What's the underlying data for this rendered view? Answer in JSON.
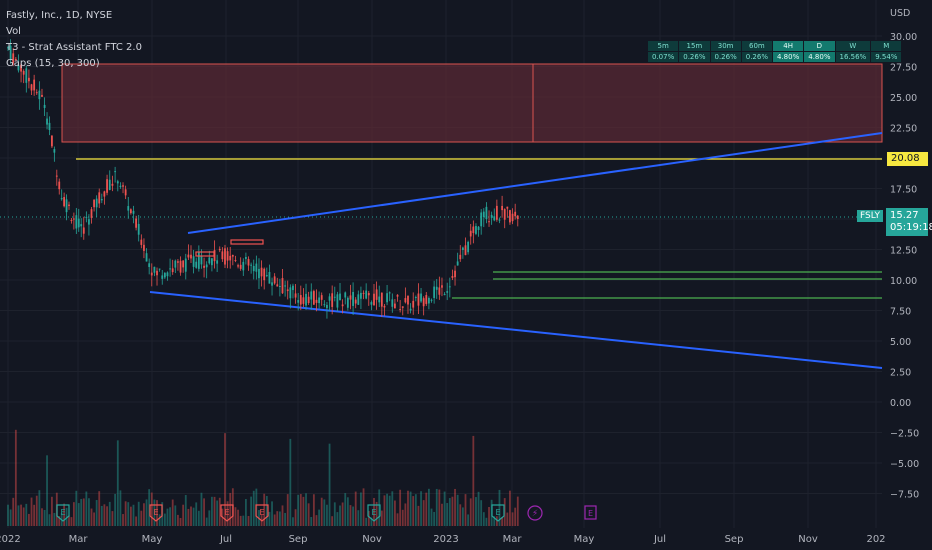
{
  "legend": {
    "symbol_line": "Fastly, Inc., 1D, NYSE",
    "vol": "Vol",
    "indicator1": "T3 - Strat Assistant FTC 2.0",
    "indicator2": "Gaps (15, 30, 300)"
  },
  "tf_table": {
    "headers": [
      "5m",
      "15m",
      "30m",
      "60m",
      "4H",
      "D",
      "W",
      "M"
    ],
    "values": [
      "0.07%",
      "0.26%",
      "0.26%",
      "0.26%",
      "4.80%",
      "4.80%",
      "16.56%",
      "9.54%"
    ]
  },
  "price_axis": {
    "currency": "USD",
    "ticks": [
      "30.00",
      "27.50",
      "25.00",
      "22.50",
      "17.50",
      "12.50",
      "10.00",
      "7.50",
      "5.00",
      "2.50",
      "0.00",
      "−2.50",
      "−5.00",
      "−7.50"
    ]
  },
  "time_axis": {
    "ticks": [
      "2022",
      "Mar",
      "May",
      "Jul",
      "Sep",
      "Nov",
      "2023",
      "Mar",
      "May",
      "Jul",
      "Sep",
      "Nov",
      "202"
    ]
  },
  "tags": {
    "level": "20.08",
    "symbol": "FSLY",
    "last_price": "15.27",
    "countdown": "05:19:18"
  },
  "event_markers": [
    "E",
    "E",
    "E",
    "E",
    "E",
    "E"
  ],
  "colors": {
    "background": "#131722",
    "up": "#26a69a",
    "down": "#ef5350",
    "trendline": "#2962ff",
    "level_line": "#f7e840",
    "gap_zone": "#5c2a35",
    "support_green": "#4caf50",
    "purple_marker": "#9c27b0"
  },
  "chart_data": {
    "type": "candlestick",
    "x_range": [
      "2022-01",
      "2024-01"
    ],
    "y_range": [
      -9,
      31
    ],
    "price_series_approx": [
      {
        "date": "2022-01",
        "close": 29.0
      },
      {
        "date": "2022-02",
        "close": 24.5
      },
      {
        "date": "2022-02-15",
        "close": 17.0
      },
      {
        "date": "2022-03",
        "close": 14.0
      },
      {
        "date": "2022-03-20",
        "close": 17.5
      },
      {
        "date": "2022-04",
        "close": 18.5
      },
      {
        "date": "2022-05",
        "close": 10.5
      },
      {
        "date": "2022-06",
        "close": 11.5
      },
      {
        "date": "2022-07",
        "close": 12.0
      },
      {
        "date": "2022-08",
        "close": 10.5
      },
      {
        "date": "2022-09",
        "close": 8.5
      },
      {
        "date": "2022-10",
        "close": 8.3
      },
      {
        "date": "2022-11",
        "close": 8.6
      },
      {
        "date": "2022-12",
        "close": 8.0
      },
      {
        "date": "2023-01",
        "close": 9.5
      },
      {
        "date": "2023-02",
        "close": 15.5
      },
      {
        "date": "2023-03",
        "close": 15.27
      }
    ],
    "horizontal_levels": [
      20.08,
      10.6,
      10.1,
      8.6
    ],
    "gap_zone": {
      "from": 21.0,
      "to": 27.8
    },
    "last_price": 15.27
  }
}
